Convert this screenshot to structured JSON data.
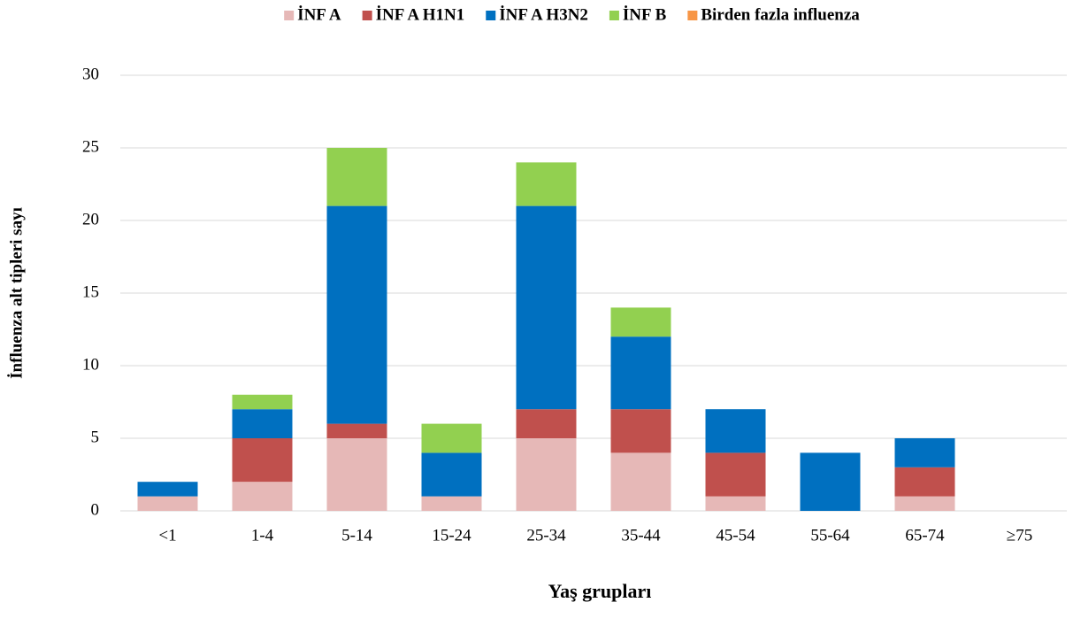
{
  "chart_data": {
    "type": "stacked_bar",
    "x_label": "Yaş grupları",
    "y_label": "İnfluenza alt tipleri sayı",
    "categories": [
      "<1",
      "1-4",
      "5-14",
      "15-24",
      "25-34",
      "35-44",
      "45-54",
      "55-64",
      "65-74",
      "≥75"
    ],
    "series": [
      {
        "name": "İNF A",
        "color": "#e6b8b7",
        "values": [
          1,
          2,
          5,
          1,
          5,
          4,
          1,
          0,
          1,
          0
        ]
      },
      {
        "name": "İNF A H1N1",
        "color": "#c0504d",
        "values": [
          0,
          3,
          1,
          0,
          2,
          3,
          3,
          0,
          2,
          0
        ]
      },
      {
        "name": "İNF A H3N2",
        "color": "#0070c0",
        "values": [
          1,
          2,
          15,
          3,
          14,
          5,
          3,
          4,
          2,
          0
        ]
      },
      {
        "name": "İNF B",
        "color": "#92d050",
        "values": [
          0,
          1,
          4,
          2,
          3,
          2,
          0,
          0,
          0,
          0
        ]
      },
      {
        "name": "Birden fazla influenza",
        "color": "#f79646",
        "values": [
          0,
          0,
          0,
          0,
          0,
          0,
          0,
          0,
          0,
          0
        ]
      }
    ],
    "ylim": [
      0,
      30
    ],
    "yticks": [
      0,
      5,
      10,
      15,
      20,
      25,
      30
    ],
    "grid": true,
    "legend": "top"
  }
}
